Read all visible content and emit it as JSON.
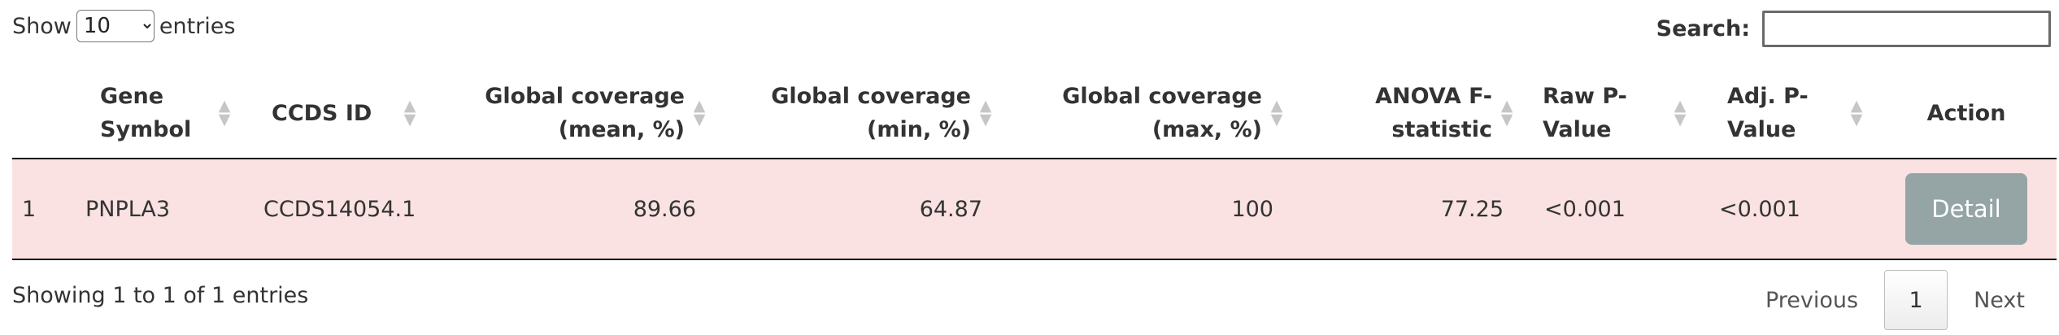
{
  "length_control": {
    "show_label": "Show",
    "selected": "10",
    "entries_label": "entries"
  },
  "search": {
    "label": "Search:",
    "value": ""
  },
  "columns": [
    {
      "label": ""
    },
    {
      "label": "Gene Symbol"
    },
    {
      "label": "CCDS ID"
    },
    {
      "label": "Global coverage (mean, %)"
    },
    {
      "label": "Global coverage (min, %)"
    },
    {
      "label": "Global coverage (max, %)"
    },
    {
      "label": "ANOVA F-statistic"
    },
    {
      "label": "Raw P-Value"
    },
    {
      "label": "Adj. P-Value"
    },
    {
      "label": "Action"
    }
  ],
  "rows": [
    {
      "index": "1",
      "gene_symbol": "PNPLA3",
      "ccds_id": "CCDS14054.1",
      "cov_mean": "89.66",
      "cov_min": "64.87",
      "cov_max": "100",
      "anova_f": "77.25",
      "raw_p": "<0.001",
      "adj_p": "<0.001",
      "action": "Detail"
    }
  ],
  "info": "Showing 1 to 1 of 1 entries",
  "pagination": {
    "previous": "Previous",
    "current": "1",
    "next": "Next"
  },
  "colors": {
    "row_bg": "#f9e2e1",
    "button_bg": "#95a5a6"
  }
}
